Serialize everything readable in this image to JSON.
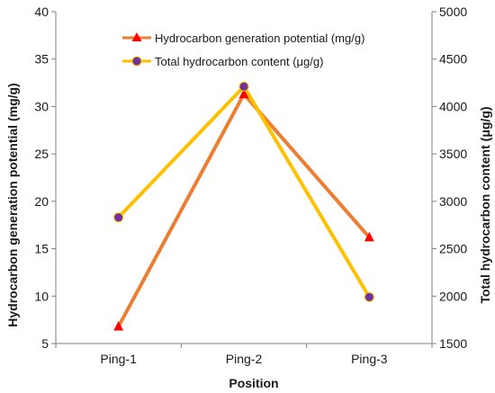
{
  "chart_data": {
    "type": "line",
    "categories": [
      "Ping-1",
      "Ping-2",
      "Ping-3"
    ],
    "xlabel": "Position",
    "y_left": {
      "label": "Hydrocarbon generation potential  (mg/g)",
      "range": [
        5,
        40
      ],
      "ticks": [
        "5",
        "10",
        "15",
        "20",
        "25",
        "30",
        "35",
        "40"
      ]
    },
    "y_right": {
      "label": "Total hydrocarbon content  (μg/g)",
      "range": [
        1500,
        5000
      ],
      "ticks": [
        "1500",
        "2000",
        "2500",
        "3000",
        "3500",
        "4000",
        "4500",
        "5000"
      ]
    },
    "series": [
      {
        "name": "Hydrocarbon generation potential (mg/g)",
        "axis": "left",
        "values": [
          6.8,
          31.3,
          16.2
        ],
        "color": "#ED7D31",
        "marker": "triangle",
        "marker_color": "#FF0000"
      },
      {
        "name": "Total hydrocarbon content (μg/g)",
        "axis": "right",
        "values": [
          2830,
          4210,
          1990
        ],
        "color": "#FFC000",
        "marker": "circle",
        "marker_color": "#7030A0"
      }
    ],
    "grid": false,
    "legend_position": "top-center"
  }
}
